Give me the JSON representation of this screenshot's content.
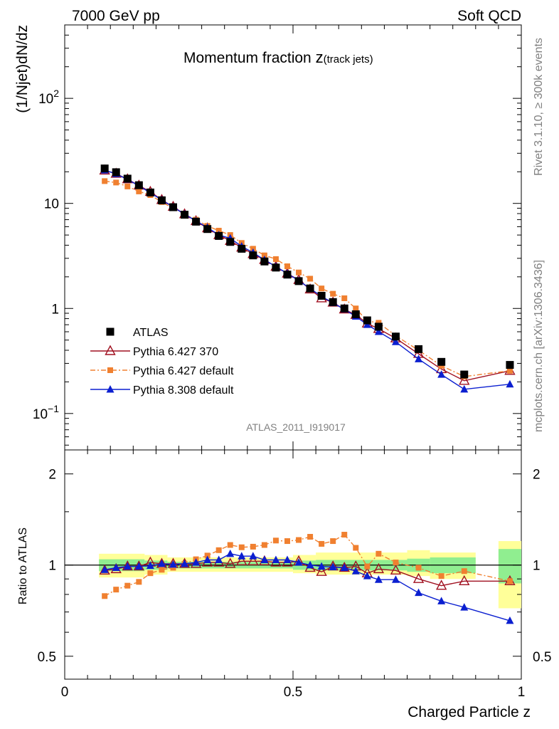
{
  "header": {
    "left": "7000 GeV pp",
    "right": "Soft QCD"
  },
  "side_labels": {
    "rivet": "Rivet 3.1.10, ≥ 300k events",
    "mcplots": "mcplots.cern.ch [arXiv:1306.3436]"
  },
  "chart_data": {
    "type": "scatter",
    "title": "Momentum fraction",
    "title_var": "z",
    "title_sub": "(track jets)",
    "watermark": "ATLAS_2011_I919017",
    "xlabel": "Charged Particle z",
    "ylabel": "(1/Njet)dN/dz",
    "ratio_ylabel": "Ratio to ATLAS",
    "yscale": "log",
    "xlim": [
      0,
      1
    ],
    "ylim": [
      0.045,
      500
    ],
    "ratio_ylim": [
      0.42,
      2.4
    ],
    "x_ticks": [
      "0",
      "0.5",
      "1"
    ],
    "y_ticks": [
      "10",
      "1"
    ],
    "y_ticks_pow": [
      {
        "base": "10",
        "exp": "2"
      },
      {
        "base": "10",
        "exp": "−1"
      }
    ],
    "ratio_ticks": [
      "2",
      "1",
      "0.5"
    ],
    "legend_position": "middle-left",
    "x": [
      0.0875,
      0.1125,
      0.1375,
      0.1625,
      0.1875,
      0.2125,
      0.2375,
      0.2625,
      0.2875,
      0.3125,
      0.3375,
      0.3625,
      0.3875,
      0.4125,
      0.4375,
      0.4625,
      0.4875,
      0.5125,
      0.5375,
      0.5625,
      0.5875,
      0.6125,
      0.6375,
      0.6625,
      0.6875,
      0.725,
      0.775,
      0.825,
      0.875,
      0.975
    ],
    "series": [
      {
        "name": "ATLAS",
        "style": "data",
        "color": "#000000",
        "values": [
          21.5,
          19.8,
          17.2,
          14.9,
          12.7,
          10.7,
          9.2,
          7.8,
          6.7,
          5.7,
          4.9,
          4.3,
          3.7,
          3.2,
          2.8,
          2.45,
          2.1,
          1.82,
          1.55,
          1.32,
          1.15,
          1.0,
          0.88,
          0.77,
          0.67,
          0.54,
          0.41,
          0.31,
          0.235,
          0.29
        ]
      },
      {
        "name": "Pythia 6.427 370",
        "style": "open-triangle",
        "color": "#a01020",
        "values": [
          20.6,
          19.2,
          17.0,
          14.8,
          12.9,
          10.8,
          9.3,
          7.9,
          6.8,
          5.8,
          5.0,
          4.4,
          3.8,
          3.3,
          2.9,
          2.5,
          2.15,
          1.87,
          1.52,
          1.25,
          1.14,
          0.98,
          0.87,
          0.72,
          0.64,
          0.52,
          0.37,
          0.265,
          0.205,
          0.255
        ]
      },
      {
        "name": "Pythia 6.427 default",
        "style": "square-dashdot",
        "color": "#f08030",
        "values": [
          16.3,
          15.8,
          14.5,
          13.0,
          12.0,
          10.3,
          9.0,
          7.9,
          7.0,
          6.1,
          5.5,
          5.0,
          4.2,
          3.7,
          3.2,
          2.95,
          2.52,
          2.2,
          1.92,
          1.55,
          1.38,
          1.25,
          1.0,
          0.76,
          0.73,
          0.55,
          0.4,
          0.285,
          0.225,
          0.255
        ]
      },
      {
        "name": "Pythia 8.308 default",
        "style": "triangle",
        "color": "#0b1fd0",
        "values": [
          20.7,
          19.1,
          16.9,
          14.7,
          12.6,
          10.8,
          9.2,
          7.9,
          6.8,
          5.9,
          5.0,
          4.65,
          3.9,
          3.4,
          2.9,
          2.5,
          2.15,
          1.84,
          1.55,
          1.3,
          1.13,
          0.98,
          0.84,
          0.7,
          0.6,
          0.48,
          0.33,
          0.235,
          0.17,
          0.19
        ]
      }
    ],
    "ratios": {
      "Pythia 6.427 370": [
        0.96,
        0.97,
        0.99,
        0.99,
        1.02,
        1.01,
        1.01,
        1.01,
        1.01,
        1.02,
        1.02,
        1.01,
        1.03,
        1.03,
        1.03,
        1.02,
        1.02,
        1.03,
        0.98,
        0.95,
        0.99,
        0.98,
        0.99,
        0.94,
        0.97,
        0.96,
        0.9,
        0.855,
        0.885,
        0.885
      ],
      "Pythia 6.427 default": [
        0.79,
        0.83,
        0.855,
        0.88,
        0.94,
        0.965,
        0.98,
        1.01,
        1.045,
        1.075,
        1.12,
        1.165,
        1.145,
        1.15,
        1.165,
        1.205,
        1.2,
        1.21,
        1.24,
        1.175,
        1.2,
        1.26,
        1.14,
        0.99,
        1.09,
        1.02,
        0.98,
        0.92,
        0.955,
        0.885
      ],
      "Pythia 8.308 default": [
        0.965,
        0.98,
        0.99,
        0.99,
        0.995,
        1.01,
        1.005,
        1.01,
        1.02,
        1.04,
        1.04,
        1.09,
        1.07,
        1.07,
        1.04,
        1.04,
        1.04,
        1.02,
        1.0,
        0.99,
        0.985,
        0.98,
        0.955,
        0.92,
        0.895,
        0.895,
        0.81,
        0.76,
        0.725,
        0.655
      ]
    },
    "uncertainty_bands": {
      "inner_color": "#90ee90",
      "outer_color": "#ffff99",
      "bins": [
        {
          "x0": 0.075,
          "x1": 0.175,
          "inner": [
            0.955,
            1.045
          ],
          "outer": [
            0.91,
            1.09
          ]
        },
        {
          "x0": 0.175,
          "x1": 0.225,
          "inner": [
            0.965,
            1.035
          ],
          "outer": [
            0.93,
            1.08
          ]
        },
        {
          "x0": 0.225,
          "x1": 0.5,
          "inner": [
            0.975,
            1.025
          ],
          "outer": [
            0.95,
            1.06
          ]
        },
        {
          "x0": 0.5,
          "x1": 0.55,
          "inner": [
            0.965,
            1.035
          ],
          "outer": [
            0.94,
            1.08
          ]
        },
        {
          "x0": 0.55,
          "x1": 0.75,
          "inner": [
            0.96,
            1.04
          ],
          "outer": [
            0.93,
            1.1
          ]
        },
        {
          "x0": 0.75,
          "x1": 0.8,
          "inner": [
            0.95,
            1.05
          ],
          "outer": [
            0.92,
            1.12
          ]
        },
        {
          "x0": 0.8,
          "x1": 0.9,
          "inner": [
            0.94,
            1.06
          ],
          "outer": [
            0.9,
            1.1
          ]
        },
        {
          "x0": 0.95,
          "x1": 1.0,
          "inner": [
            0.87,
            1.13
          ],
          "outer": [
            0.72,
            1.2
          ]
        }
      ]
    }
  }
}
